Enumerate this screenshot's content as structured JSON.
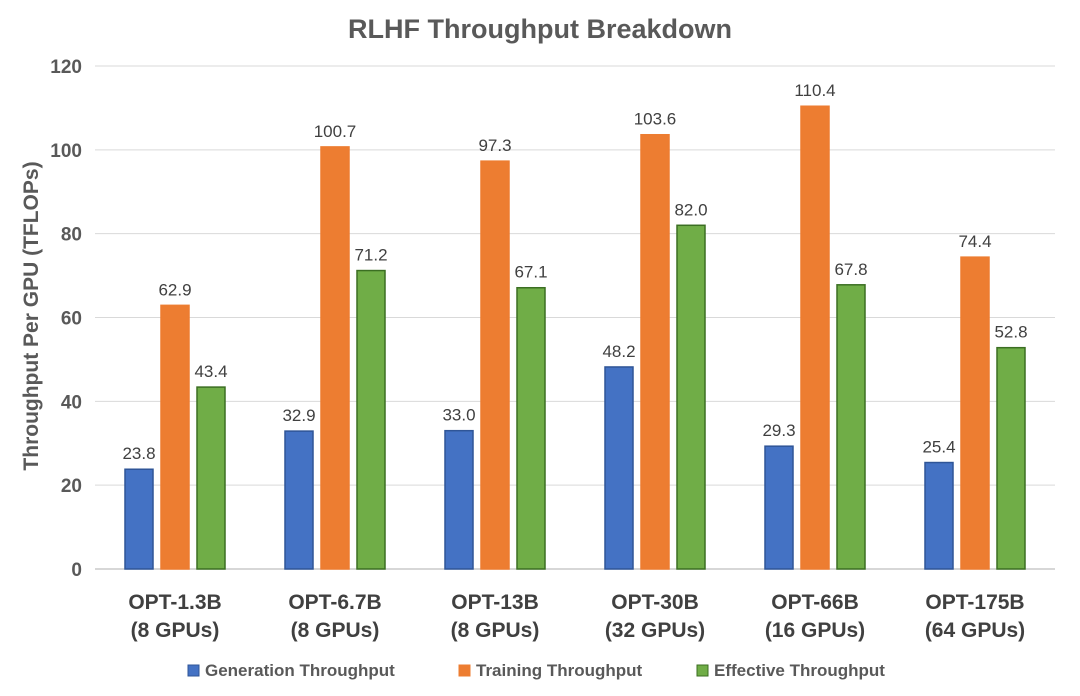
{
  "chart_data": {
    "type": "bar",
    "title": "RLHF Throughput Breakdown",
    "xlabel": "",
    "ylabel": "Throughput Per GPU (TFLOPs)",
    "ylim": [
      0,
      120
    ],
    "yticks": [
      0,
      20,
      40,
      60,
      80,
      100,
      120
    ],
    "grid": true,
    "legend_position": "bottom",
    "categories": [
      [
        "OPT-1.3B",
        "(8 GPUs)"
      ],
      [
        "OPT-6.7B",
        "(8 GPUs)"
      ],
      [
        "OPT-13B",
        "(8 GPUs)"
      ],
      [
        "OPT-30B",
        "(32 GPUs)"
      ],
      [
        "OPT-66B",
        "(16 GPUs)"
      ],
      [
        "OPT-175B",
        "(64 GPUs)"
      ]
    ],
    "series": [
      {
        "name": "Generation Throughput",
        "color": "#4472c4",
        "border": "#2f5597",
        "values": [
          23.8,
          32.9,
          33.0,
          48.2,
          29.3,
          25.4
        ]
      },
      {
        "name": "Training Throughput",
        "color": "#ed7d31",
        "border": "#ed7d31",
        "values": [
          62.9,
          100.7,
          97.3,
          103.6,
          110.4,
          74.4
        ]
      },
      {
        "name": "Effective Throughput",
        "color": "#70ad47",
        "border": "#3b6e22",
        "values": [
          43.4,
          71.2,
          67.1,
          82.0,
          67.8,
          52.8
        ]
      }
    ]
  }
}
